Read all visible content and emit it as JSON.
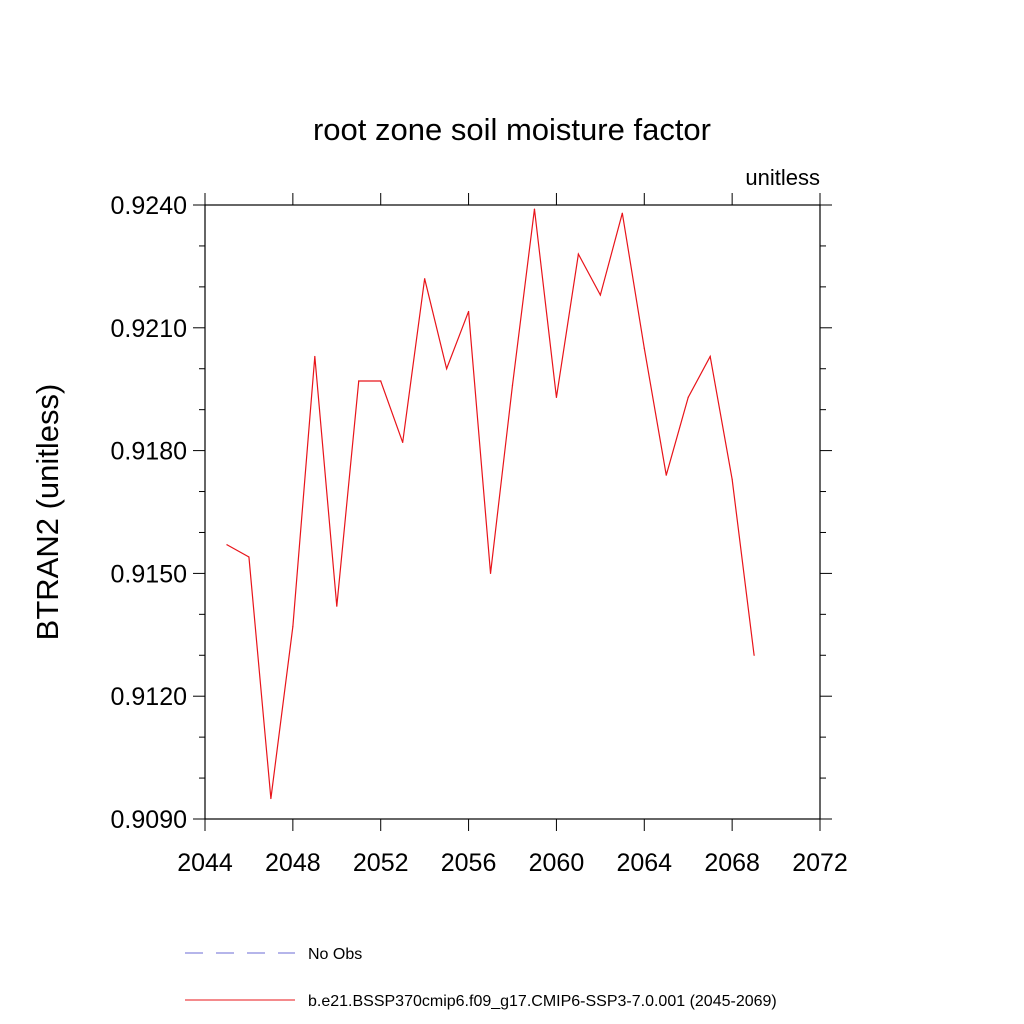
{
  "chart_data": {
    "type": "line",
    "title": "root zone soil moisture factor",
    "units_label": "unitless",
    "ylabel": "BTRAN2  (unitless)",
    "xlabel": "",
    "xlim": [
      2044,
      2072
    ],
    "ylim": [
      0.909,
      0.924
    ],
    "x_ticks": [
      2044,
      2048,
      2052,
      2056,
      2060,
      2064,
      2068,
      2072
    ],
    "x_tick_labels": [
      "2044",
      "2048",
      "2052",
      "2056",
      "2060",
      "2064",
      "2068",
      "2072"
    ],
    "y_ticks": [
      0.909,
      0.912,
      0.915,
      0.918,
      0.921,
      0.924
    ],
    "y_tick_labels": [
      "0.9090",
      "0.9120",
      "0.9150",
      "0.9180",
      "0.9210",
      "0.9240"
    ],
    "grid": false,
    "legend_position": "bottom",
    "series": [
      {
        "name": "No Obs",
        "color": "#6b6bd6",
        "dash": "dashed",
        "x": [],
        "y": []
      },
      {
        "name": "b.e21.BSSP370cmip6.f09_g17.CMIP6-SSP3-7.0.001 (2045-2069)",
        "color": "#e8141a",
        "dash": "solid",
        "x": [
          2045,
          2046,
          2047,
          2048,
          2049,
          2050,
          2051,
          2052,
          2053,
          2054,
          2055,
          2056,
          2057,
          2058,
          2059,
          2060,
          2061,
          2062,
          2063,
          2064,
          2065,
          2066,
          2067,
          2068,
          2069
        ],
        "y": [
          0.9157,
          0.9154,
          0.9095,
          0.9137,
          0.9203,
          0.9142,
          0.9197,
          0.9197,
          0.9182,
          0.9222,
          0.92,
          0.9214,
          0.915,
          0.9196,
          0.9239,
          0.9193,
          0.9228,
          0.9218,
          0.9238,
          0.9205,
          0.9174,
          0.9193,
          0.9203,
          0.9173,
          0.913
        ]
      }
    ]
  }
}
